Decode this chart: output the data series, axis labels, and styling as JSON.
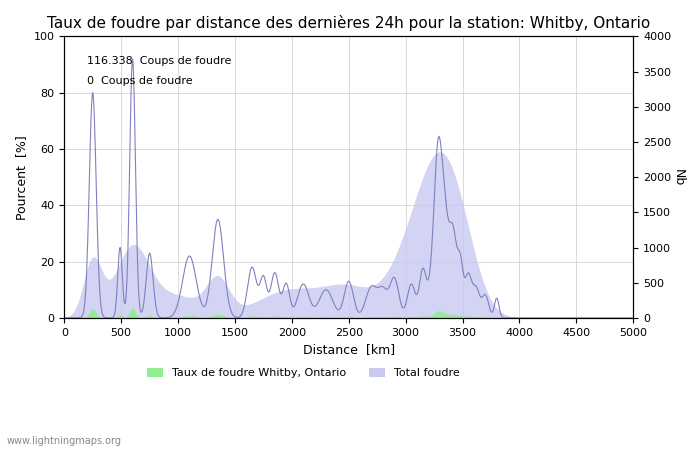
{
  "title": "Taux de foudre par distance des dernières 24h pour la station: Whitby, Ontario",
  "xlabel": "Distance  [km]",
  "ylabel_left": "Pourcent  [%]",
  "ylabel_right": "Nb",
  "annotation_line1": "116.338  Coups de foudre",
  "annotation_line2": "0  Coups de foudre",
  "xlim": [
    0,
    5000
  ],
  "ylim_left": [
    0,
    100
  ],
  "ylim_right": [
    0,
    4000
  ],
  "xticks": [
    0,
    500,
    1000,
    1500,
    2000,
    2500,
    3000,
    3500,
    4000,
    4500,
    5000
  ],
  "yticks_left": [
    0,
    20,
    40,
    60,
    80,
    100
  ],
  "yticks_right": [
    0,
    500,
    1000,
    1500,
    2000,
    2500,
    3000,
    3500,
    4000
  ],
  "legend_label1": "Taux de foudre Whitby, Ontario",
  "legend_label2": "Total foudre",
  "watermark": "www.lightningmaps.org",
  "line_color": "#8080c0",
  "fill_color_rate": "#90ee90",
  "fill_color_total": "#c8c8f0",
  "background_color": "#ffffff",
  "title_fontsize": 11
}
